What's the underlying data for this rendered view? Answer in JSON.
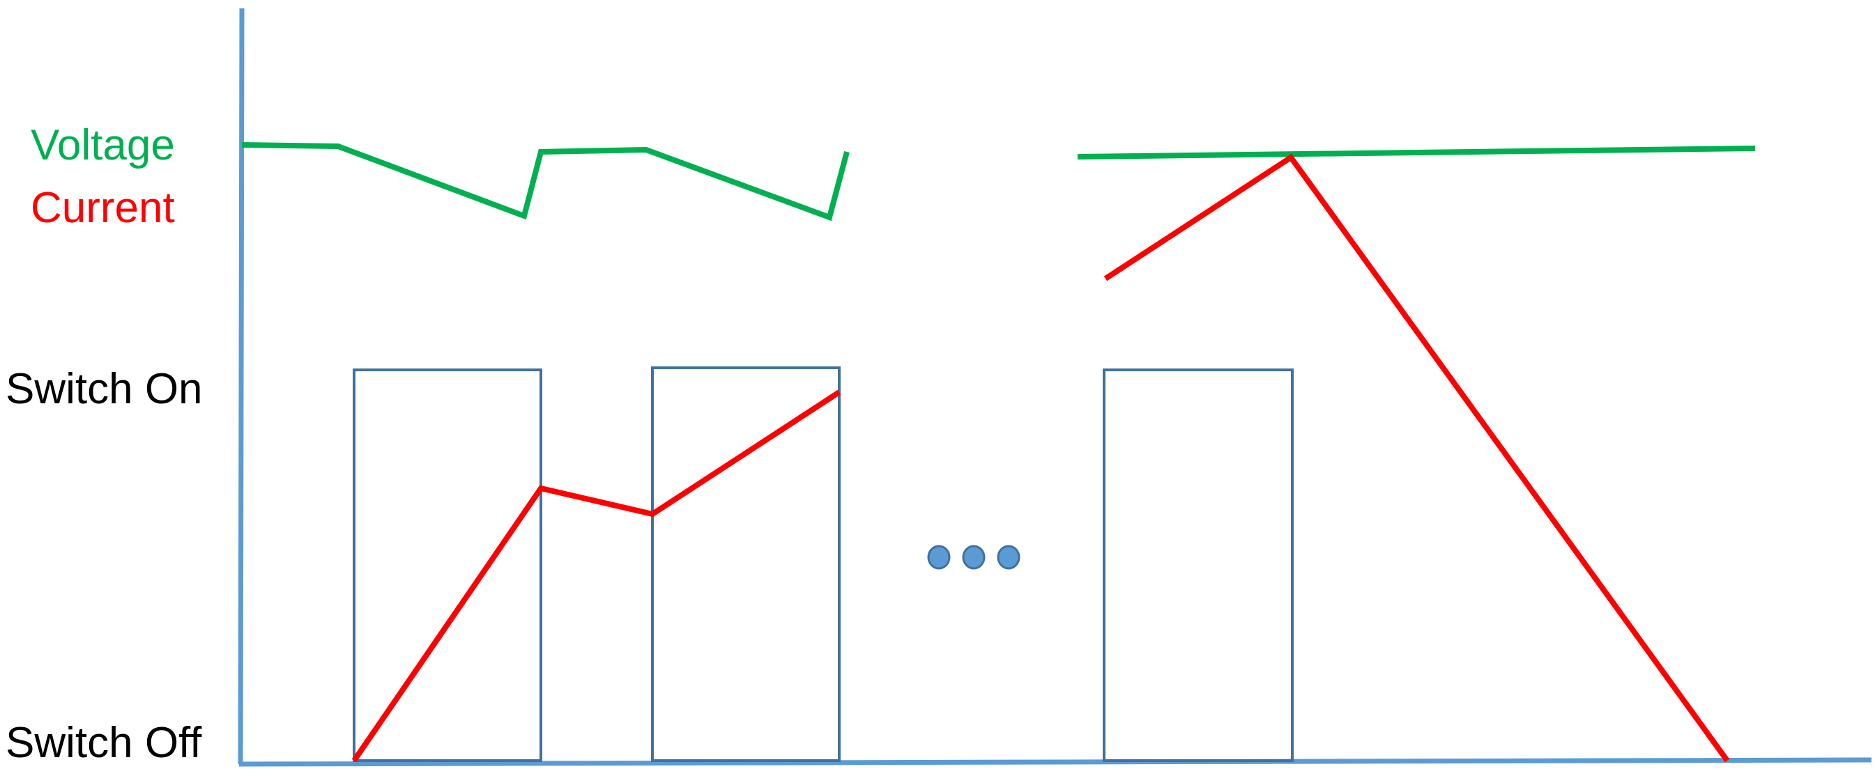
{
  "labels": {
    "voltage": "Voltage",
    "current": "Current",
    "switch_on": "Switch On",
    "switch_off": "Switch Off"
  },
  "colors": {
    "axis": "#5b9bd5",
    "voltage": "#00b050",
    "current": "#ff0000",
    "switch_box": "#41719c",
    "ellipsis_dot": "#5b9bd5",
    "text": "#000000"
  },
  "switch_pulses": 3,
  "ellipsis_icon": "ellipsis-dots-icon"
}
